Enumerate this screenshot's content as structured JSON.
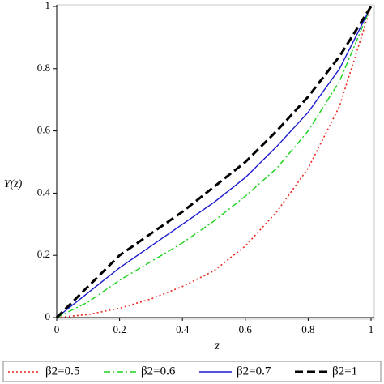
{
  "chart_data": {
    "type": "line",
    "x_label": "z",
    "y_label": "Y(z)",
    "x": [
      0,
      0.1,
      0.2,
      0.3,
      0.4,
      0.5,
      0.6,
      0.7,
      0.8,
      0.9,
      1
    ],
    "series": [
      {
        "name": "β2=0.5",
        "color": "#e8261c",
        "dash": "dotted",
        "values": [
          0,
          0.01,
          0.03,
          0.06,
          0.1,
          0.15,
          0.23,
          0.34,
          0.48,
          0.68,
          1
        ]
      },
      {
        "name": "β2=0.6",
        "color": "#19d219",
        "dash": "dashdot",
        "values": [
          0,
          0.05,
          0.12,
          0.18,
          0.24,
          0.31,
          0.39,
          0.48,
          0.6,
          0.76,
          1
        ]
      },
      {
        "name": "β2=0.7",
        "color": "#1a1ad0",
        "dash": "solid",
        "values": [
          0,
          0.08,
          0.16,
          0.23,
          0.3,
          0.37,
          0.45,
          0.55,
          0.66,
          0.8,
          1
        ]
      },
      {
        "name": "β2=1",
        "color": "#000000",
        "dash": "dashed",
        "values": [
          0,
          0.1,
          0.2,
          0.27,
          0.34,
          0.42,
          0.5,
          0.6,
          0.71,
          0.84,
          1
        ]
      }
    ],
    "xlim": [
      0,
      1
    ],
    "ylim": [
      0,
      1
    ],
    "xticks": [
      0,
      0.2,
      0.4,
      0.6,
      0.8,
      1
    ],
    "yticks": [
      0,
      0.2,
      0.4,
      0.6,
      0.8,
      1
    ],
    "legend": "bottom"
  }
}
